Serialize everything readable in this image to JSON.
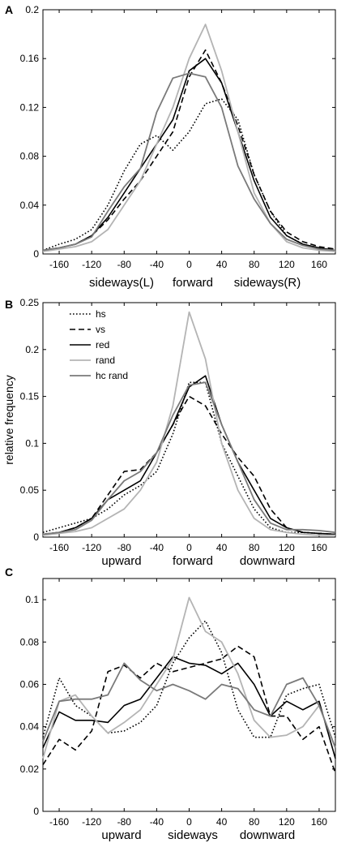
{
  "chart_data": [
    {
      "panel": "A",
      "type": "line",
      "xlim": [
        -180,
        180
      ],
      "ylim": [
        0,
        0.2
      ],
      "xticks": [
        -160,
        -120,
        -80,
        -40,
        0,
        40,
        80,
        120,
        160
      ],
      "yticks": [
        0,
        0.04,
        0.08,
        0.12,
        0.16,
        0.2
      ],
      "ytick_labels": [
        "0",
        "0.04",
        "0.08",
        "0.12",
        "0.16",
        "0.2"
      ],
      "xlabel_left": "sideways(L)",
      "xlabel_center": "forward",
      "xlabel_right": "sideways(R)",
      "ylabel": "",
      "x": [
        -180,
        -160,
        -140,
        -120,
        -100,
        -80,
        -60,
        -40,
        -20,
        0,
        20,
        40,
        60,
        80,
        100,
        120,
        140,
        160,
        180
      ],
      "series": [
        {
          "name": "hs",
          "values": [
            0.003,
            0.008,
            0.012,
            0.02,
            0.04,
            0.068,
            0.09,
            0.097,
            0.085,
            0.1,
            0.123,
            0.127,
            0.11,
            0.065,
            0.035,
            0.015,
            0.008,
            0.005,
            0.003
          ]
        },
        {
          "name": "vs",
          "values": [
            0.003,
            0.005,
            0.008,
            0.015,
            0.028,
            0.045,
            0.06,
            0.08,
            0.1,
            0.145,
            0.167,
            0.14,
            0.105,
            0.065,
            0.035,
            0.018,
            0.01,
            0.006,
            0.004
          ]
        },
        {
          "name": "red",
          "values": [
            0.003,
            0.005,
            0.008,
            0.015,
            0.03,
            0.05,
            0.07,
            0.09,
            0.11,
            0.15,
            0.16,
            0.14,
            0.1,
            0.06,
            0.03,
            0.015,
            0.008,
            0.005,
            0.003
          ]
        },
        {
          "name": "rand",
          "values": [
            0.002,
            0.004,
            0.006,
            0.01,
            0.02,
            0.04,
            0.06,
            0.09,
            0.12,
            0.16,
            0.188,
            0.15,
            0.1,
            0.05,
            0.025,
            0.01,
            0.005,
            0.003,
            0.002
          ]
        },
        {
          "name": "hc rand",
          "values": [
            0.003,
            0.005,
            0.008,
            0.014,
            0.035,
            0.055,
            0.07,
            0.116,
            0.144,
            0.148,
            0.145,
            0.12,
            0.072,
            0.045,
            0.025,
            0.012,
            0.007,
            0.004,
            0.003
          ]
        }
      ]
    },
    {
      "panel": "B",
      "type": "line",
      "xlim": [
        -180,
        180
      ],
      "ylim": [
        0,
        0.25
      ],
      "xticks": [
        -160,
        -120,
        -80,
        -40,
        0,
        40,
        80,
        120,
        160
      ],
      "yticks": [
        0,
        0.05,
        0.1,
        0.15,
        0.2,
        0.25
      ],
      "ytick_labels": [
        "0",
        "0.05",
        "0.1",
        "0.15",
        "0.2",
        "0.25"
      ],
      "xlabel_left": "upward",
      "xlabel_center": "forward",
      "xlabel_right": "downward",
      "ylabel": "relative frequency",
      "legend": {
        "placement": "top-left"
      },
      "x": [
        -180,
        -160,
        -140,
        -120,
        -100,
        -80,
        -60,
        -40,
        -20,
        0,
        20,
        40,
        60,
        80,
        100,
        120,
        140,
        160,
        180
      ],
      "series": [
        {
          "name": "hs",
          "values": [
            0.005,
            0.01,
            0.015,
            0.02,
            0.03,
            0.045,
            0.055,
            0.07,
            0.11,
            0.165,
            0.165,
            0.1,
            0.065,
            0.03,
            0.01,
            0.005,
            0.005,
            0.004,
            0.003
          ]
        },
        {
          "name": "vs",
          "values": [
            0.003,
            0.005,
            0.01,
            0.02,
            0.045,
            0.07,
            0.072,
            0.09,
            0.12,
            0.15,
            0.14,
            0.11,
            0.085,
            0.065,
            0.03,
            0.01,
            0.005,
            0.004,
            0.003
          ]
        },
        {
          "name": "red",
          "values": [
            0.003,
            0.005,
            0.01,
            0.02,
            0.04,
            0.05,
            0.06,
            0.09,
            0.12,
            0.16,
            0.172,
            0.12,
            0.08,
            0.05,
            0.02,
            0.01,
            0.005,
            0.004,
            0.003
          ]
        },
        {
          "name": "rand",
          "values": [
            0.002,
            0.004,
            0.006,
            0.01,
            0.02,
            0.03,
            0.05,
            0.08,
            0.14,
            0.24,
            0.19,
            0.1,
            0.05,
            0.02,
            0.008,
            0.005,
            0.003,
            0.002,
            0.002
          ]
        },
        {
          "name": "hc rand",
          "values": [
            0.003,
            0.005,
            0.008,
            0.018,
            0.04,
            0.06,
            0.07,
            0.09,
            0.13,
            0.162,
            0.165,
            0.12,
            0.08,
            0.04,
            0.015,
            0.008,
            0.008,
            0.007,
            0.005
          ]
        }
      ]
    },
    {
      "panel": "C",
      "type": "line",
      "xlim": [
        -180,
        180
      ],
      "ylim": [
        0,
        0.11
      ],
      "xticks": [
        -160,
        -120,
        -80,
        -40,
        0,
        40,
        80,
        120,
        160
      ],
      "yticks": [
        0,
        0.02,
        0.04,
        0.06,
        0.08,
        0.1
      ],
      "ytick_labels": [
        "0",
        "0.02",
        "0.04",
        "0.06",
        "0.08",
        "0.1"
      ],
      "xlabel_left": "upward",
      "xlabel_center": "sideways",
      "xlabel_right": "downward",
      "ylabel": "",
      "x": [
        -180,
        -160,
        -140,
        -120,
        -100,
        -80,
        -60,
        -40,
        -20,
        0,
        20,
        40,
        60,
        80,
        100,
        120,
        140,
        160,
        180
      ],
      "series": [
        {
          "name": "hs",
          "values": [
            0.035,
            0.063,
            0.05,
            0.045,
            0.037,
            0.038,
            0.042,
            0.05,
            0.07,
            0.082,
            0.09,
            0.075,
            0.048,
            0.035,
            0.035,
            0.055,
            0.058,
            0.06,
            0.035
          ]
        },
        {
          "name": "vs",
          "values": [
            0.022,
            0.034,
            0.029,
            0.038,
            0.066,
            0.069,
            0.063,
            0.07,
            0.066,
            0.068,
            0.07,
            0.072,
            0.078,
            0.073,
            0.045,
            0.045,
            0.034,
            0.04,
            0.018
          ]
        },
        {
          "name": "red",
          "values": [
            0.03,
            0.047,
            0.043,
            0.043,
            0.042,
            0.05,
            0.053,
            0.063,
            0.073,
            0.07,
            0.069,
            0.065,
            0.07,
            0.06,
            0.045,
            0.052,
            0.048,
            0.052,
            0.025
          ]
        },
        {
          "name": "rand",
          "values": [
            0.025,
            0.052,
            0.055,
            0.045,
            0.037,
            0.042,
            0.048,
            0.06,
            0.072,
            0.101,
            0.085,
            0.08,
            0.065,
            0.043,
            0.035,
            0.036,
            0.04,
            0.05,
            0.03
          ]
        },
        {
          "name": "hc rand",
          "values": [
            0.033,
            0.052,
            0.053,
            0.053,
            0.055,
            0.07,
            0.062,
            0.057,
            0.06,
            0.057,
            0.053,
            0.06,
            0.058,
            0.048,
            0.045,
            0.06,
            0.063,
            0.05,
            0.03
          ]
        }
      ]
    }
  ],
  "series_styles": [
    {
      "name": "hs",
      "color": "#000000",
      "dash": "1.6 2.4",
      "width": 1.6
    },
    {
      "name": "vs",
      "color": "#000000",
      "dash": "7 4",
      "width": 1.6
    },
    {
      "name": "red",
      "color": "#000000",
      "dash": "",
      "width": 1.6
    },
    {
      "name": "rand",
      "color": "#b4b4b4",
      "dash": "",
      "width": 1.8
    },
    {
      "name": "hc rand",
      "color": "#7a7a7a",
      "dash": "",
      "width": 1.8
    }
  ]
}
